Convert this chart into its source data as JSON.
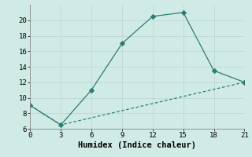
{
  "line1_x": [
    0,
    3,
    6,
    9,
    12,
    15,
    18,
    21
  ],
  "line1_y": [
    9,
    6.5,
    11,
    17,
    20.5,
    21,
    13.5,
    12
  ],
  "line2_x": [
    0,
    3,
    21
  ],
  "line2_y": [
    9,
    6.5,
    12
  ],
  "line_color": "#2d7d74",
  "bg_color": "#d0eae6",
  "grid_color_major": "#c0d8d4",
  "grid_color_minor": "#e0c8c8",
  "xlabel": "Humidex (Indice chaleur)",
  "xlim": [
    0,
    21
  ],
  "ylim": [
    6,
    22
  ],
  "xticks": [
    0,
    3,
    6,
    9,
    12,
    15,
    18,
    21
  ],
  "yticks": [
    6,
    8,
    10,
    12,
    14,
    16,
    18,
    20
  ],
  "xlabel_fontsize": 7.5,
  "tick_fontsize": 6.5
}
